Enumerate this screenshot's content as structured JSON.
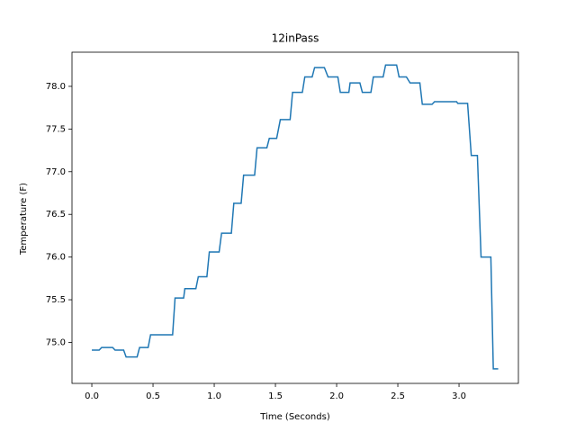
{
  "chart_data": {
    "type": "line",
    "title": "12inPass",
    "x_label": "Time (Seconds)",
    "y_label": "Temperature (F)",
    "x": [
      0.0,
      0.06,
      0.08,
      0.17,
      0.19,
      0.26,
      0.28,
      0.37,
      0.39,
      0.46,
      0.48,
      0.66,
      0.68,
      0.75,
      0.76,
      0.85,
      0.87,
      0.94,
      0.96,
      1.04,
      1.06,
      1.14,
      1.16,
      1.22,
      1.24,
      1.33,
      1.35,
      1.43,
      1.45,
      1.51,
      1.54,
      1.62,
      1.64,
      1.72,
      1.74,
      1.8,
      1.82,
      1.9,
      1.93,
      2.01,
      2.03,
      2.1,
      2.11,
      2.19,
      2.21,
      2.28,
      2.3,
      2.38,
      2.4,
      2.49,
      2.51,
      2.57,
      2.6,
      2.68,
      2.7,
      2.78,
      2.8,
      2.98,
      2.99,
      3.07,
      3.1,
      3.15,
      3.18,
      3.26,
      3.28,
      3.32
    ],
    "series": [
      {
        "name": "12inPass",
        "color": "#1f77b4",
        "values": [
          74.91,
          74.91,
          74.94,
          74.94,
          74.91,
          74.91,
          74.83,
          74.83,
          74.94,
          74.94,
          75.09,
          75.09,
          75.52,
          75.52,
          75.63,
          75.63,
          75.77,
          75.77,
          76.06,
          76.06,
          76.28,
          76.28,
          76.63,
          76.63,
          76.96,
          76.96,
          77.28,
          77.28,
          77.39,
          77.39,
          77.61,
          77.61,
          77.93,
          77.93,
          78.11,
          78.11,
          78.22,
          78.22,
          78.11,
          78.11,
          77.93,
          77.93,
          78.04,
          78.04,
          77.93,
          77.93,
          78.11,
          78.11,
          78.25,
          78.25,
          78.11,
          78.11,
          78.04,
          78.04,
          77.79,
          77.79,
          77.82,
          77.82,
          77.8,
          77.8,
          77.19,
          77.19,
          76.0,
          76.0,
          74.69,
          74.69
        ]
      }
    ],
    "xlim": [
      -0.162,
      3.485
    ],
    "ylim": [
      74.52,
      78.4
    ],
    "xticks": [
      {
        "value": 0,
        "label": "0.0"
      },
      0.5,
      {
        "value": 1,
        "label": "1.0"
      },
      1.5,
      {
        "value": 2,
        "label": "2.0"
      },
      2.5,
      {
        "value": 3,
        "label": "3.0"
      }
    ],
    "yticks": [
      {
        "value": 75,
        "label": "75.0"
      },
      75.5,
      {
        "value": 76,
        "label": "76.0"
      },
      76.5,
      {
        "value": 77,
        "label": "77.0"
      },
      77.5,
      {
        "value": 78,
        "label": "78.0"
      }
    ]
  }
}
